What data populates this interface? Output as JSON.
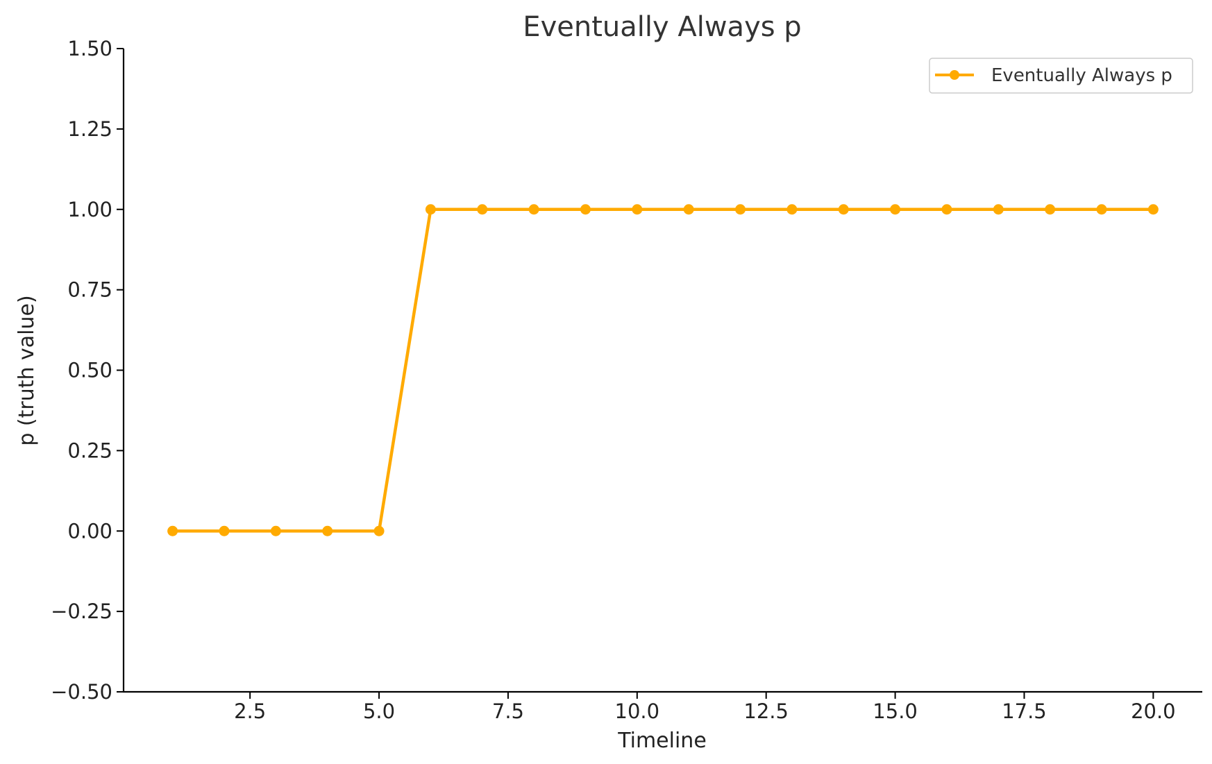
{
  "chart_data": {
    "type": "line",
    "title": "Eventually Always p",
    "xlabel": "Timeline",
    "ylabel": "p (truth value)",
    "xlim": [
      0.05,
      20.95
    ],
    "ylim": [
      -0.5,
      1.5
    ],
    "x_ticks": [
      2.5,
      5.0,
      7.5,
      10.0,
      12.5,
      15.0,
      17.5,
      20.0
    ],
    "x_tick_labels": [
      "2.5",
      "5.0",
      "7.5",
      "10.0",
      "12.5",
      "15.0",
      "17.5",
      "20.0"
    ],
    "y_ticks": [
      -0.5,
      -0.25,
      0.0,
      0.25,
      0.5,
      0.75,
      1.0,
      1.25,
      1.5
    ],
    "y_tick_labels": [
      "−0.50",
      "−0.25",
      "0.00",
      "0.25",
      "0.50",
      "0.75",
      "1.00",
      "1.25",
      "1.50"
    ],
    "grid": false,
    "legend_position": "top-right",
    "series": [
      {
        "name": "Eventually Always p",
        "color": "#FFAA00",
        "marker": "circle",
        "x": [
          1,
          2,
          3,
          4,
          5,
          6,
          7,
          8,
          9,
          10,
          11,
          12,
          13,
          14,
          15,
          16,
          17,
          18,
          19,
          20
        ],
        "y": [
          0,
          0,
          0,
          0,
          0,
          1,
          1,
          1,
          1,
          1,
          1,
          1,
          1,
          1,
          1,
          1,
          1,
          1,
          1,
          1
        ]
      }
    ]
  }
}
